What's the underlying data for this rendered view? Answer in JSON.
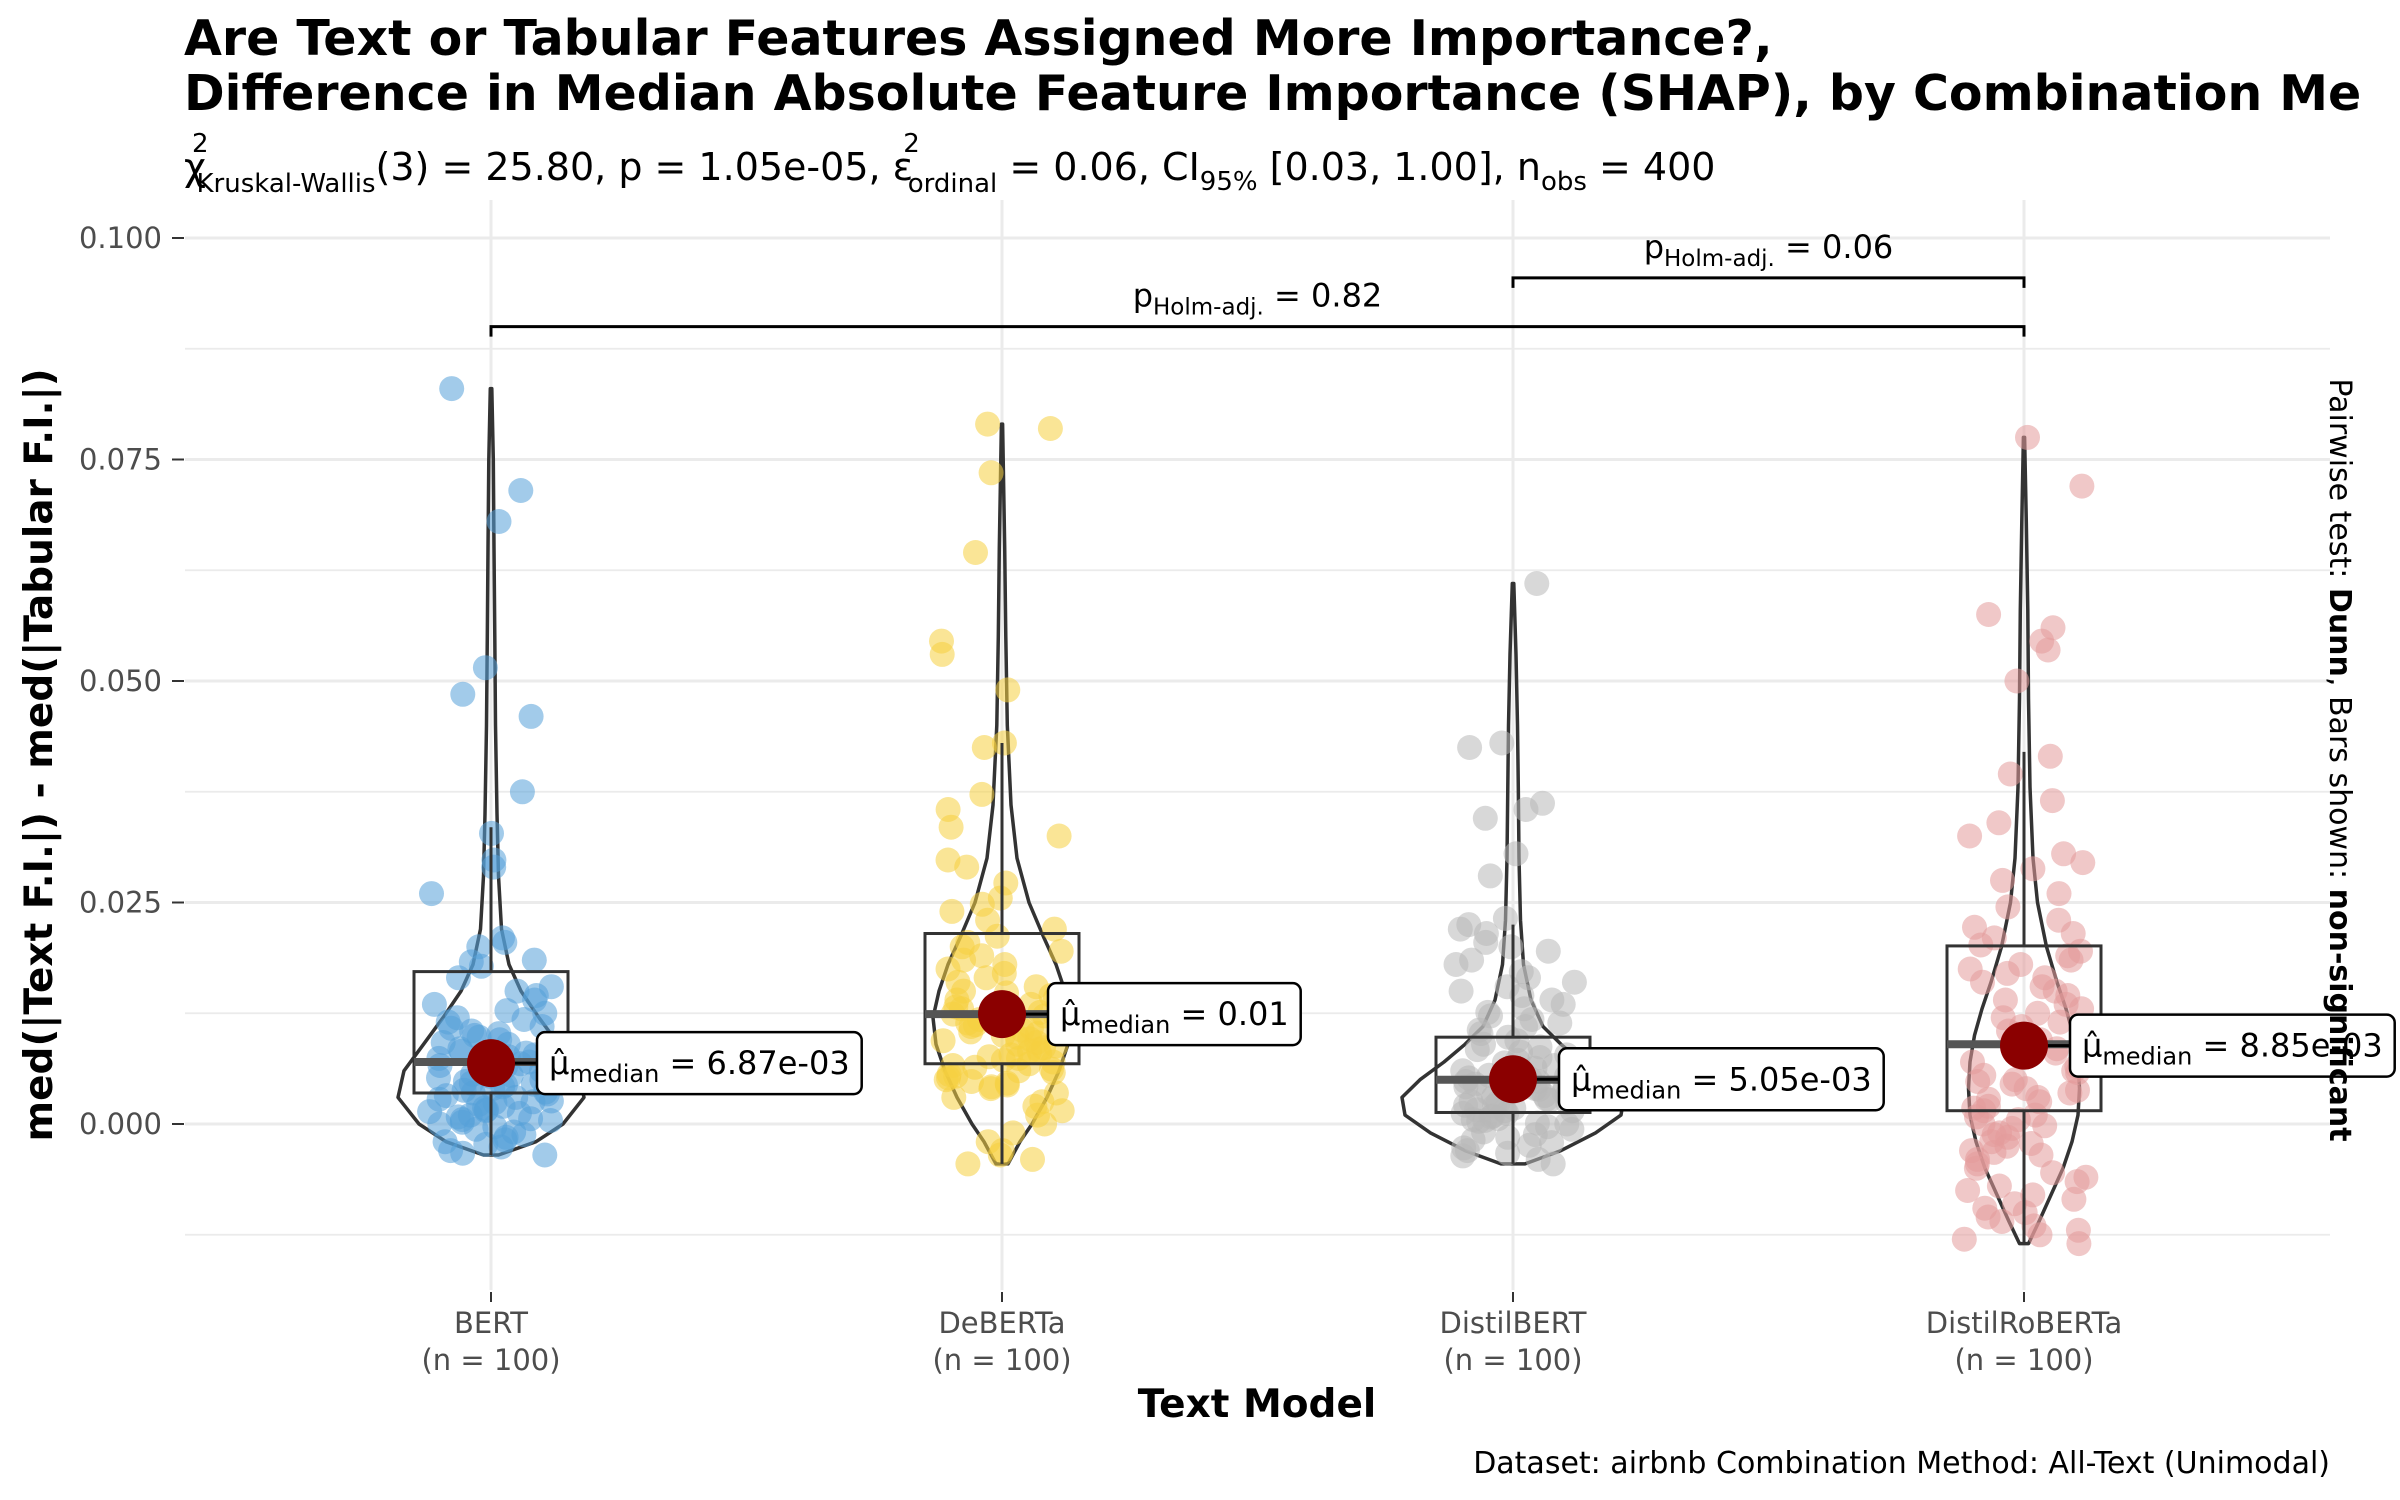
{
  "chart_data": {
    "type": "violin-box-scatter",
    "title_line1": "Are Text or Tabular Features Assigned More Importance?,",
    "title_line2": "Difference in Median Absolute Feature Importance (SHAP), by Combination Me",
    "subtitle": {
      "chi": "χ",
      "chi_sup": "2",
      "chi_sub": "Kruskal-Wallis",
      "stat": "(3) = 25.80, p = 1.05e-05, ",
      "eps": "ε",
      "eps_sup": "2",
      "eps_sub": "ordinal",
      "eps_val": " = 0.06, CI",
      "ci_sub": "95%",
      "ci_val": " [0.03, 1.00], n",
      "n_sub": "obs",
      "n_val": " = 400"
    },
    "xlabel": "Text Model",
    "ylabel": "med(|Text F.I.|) - med(|Tabular F.I.|)",
    "y_ticks": [
      "0.000",
      "0.025",
      "0.050",
      "0.075",
      "0.100"
    ],
    "y_tick_values": [
      0,
      0.025,
      0.05,
      0.075,
      0.1
    ],
    "ylim": [
      -0.0175,
      0.105
    ],
    "grid": true,
    "side_label": {
      "prefix": "Pairwise test: ",
      "test": "Dunn",
      "middle": ", Bars shown: ",
      "bars": "non-significant"
    },
    "caption": "Dataset:  airbnb Combination Method:  All-Text (Unimodal)",
    "median_label_prefix": "μ̂",
    "median_label_sub": "median",
    "brackets": [
      {
        "from": "DistilBERT",
        "to": "DistilRoBERTa",
        "y": 0.0955,
        "label_p": "p",
        "label_sub": "Holm-adj.",
        "label_val": " = 0.06"
      },
      {
        "from": "BERT",
        "to": "DistilRoBERTa",
        "y": 0.09,
        "label_p": "p",
        "label_sub": "Holm-adj.",
        "label_val": " = 0.82"
      }
    ],
    "groups": [
      {
        "name": "BERT",
        "n_label": "(n = 100)",
        "color": "#56a0d8",
        "median": 0.00687,
        "median_label": " = 6.87e-03",
        "box": {
          "q1": 0.0035,
          "median": 0.007,
          "q3": 0.0172,
          "whisker_low": -0.0035,
          "whisker_high": 0.0335
        },
        "violin_min": -0.0035,
        "violin_max": 0.083,
        "violin_profile": [
          [
            -0.0035,
            0.05
          ],
          [
            -0.002,
            0.3
          ],
          [
            0.0,
            0.48
          ],
          [
            0.003,
            0.62
          ],
          [
            0.006,
            0.58
          ],
          [
            0.009,
            0.45
          ],
          [
            0.012,
            0.32
          ],
          [
            0.015,
            0.2
          ],
          [
            0.018,
            0.12
          ],
          [
            0.022,
            0.07
          ],
          [
            0.028,
            0.05
          ],
          [
            0.035,
            0.04
          ],
          [
            0.045,
            0.03
          ],
          [
            0.055,
            0.025
          ],
          [
            0.065,
            0.02
          ],
          [
            0.075,
            0.015
          ],
          [
            0.083,
            0.005
          ]
        ],
        "points": [
          0.083,
          0.0715,
          0.068,
          0.0515,
          0.0485,
          0.046,
          0.0375,
          0.0328,
          0.0298,
          0.029,
          0.026,
          0.021,
          0.0205,
          0.02,
          0.0185,
          0.0183,
          0.0178,
          0.0165,
          0.0155,
          0.015,
          0.0145,
          0.014,
          0.0135,
          0.0128,
          0.0125,
          0.012,
          0.0118,
          0.0115,
          0.011,
          0.0108,
          0.0105,
          0.0102,
          0.01,
          0.0098,
          0.0095,
          0.0092,
          0.009,
          0.0088,
          0.0085,
          0.0082,
          0.008,
          0.0078,
          0.0076,
          0.0074,
          0.0072,
          0.007,
          0.0068,
          0.0066,
          0.0064,
          0.0062,
          0.006,
          0.0058,
          0.0056,
          0.0054,
          0.0052,
          0.005,
          0.0048,
          0.0046,
          0.0044,
          0.0042,
          0.004,
          0.0038,
          0.0036,
          0.0034,
          0.0032,
          0.003,
          0.0028,
          0.0026,
          0.0024,
          0.0022,
          0.002,
          0.0018,
          0.0016,
          0.0014,
          0.0012,
          0.001,
          0.0008,
          0.0006,
          0.0004,
          0.0002,
          0.0,
          -0.0003,
          -0.0006,
          -0.0009,
          -0.0012,
          -0.0015,
          -0.0018,
          -0.002,
          -0.0023,
          -0.0026,
          -0.003,
          -0.0033,
          -0.0035,
          0.0065,
          0.0055,
          0.0045,
          0.0035,
          0.0025,
          0.0015,
          0.0005
        ]
      },
      {
        "name": "DeBERTa",
        "n_label": "(n = 100)",
        "color": "#f5cf3f",
        "median": 0.0124,
        "median_label": " = 0.01",
        "box": {
          "q1": 0.0068,
          "median": 0.0124,
          "q3": 0.0215,
          "whisker_low": -0.0045,
          "whisker_high": 0.043
        },
        "violin_min": -0.0045,
        "violin_max": 0.079,
        "violin_profile": [
          [
            -0.0045,
            0.04
          ],
          [
            -0.002,
            0.12
          ],
          [
            0.0,
            0.2
          ],
          [
            0.003,
            0.3
          ],
          [
            0.006,
            0.38
          ],
          [
            0.009,
            0.44
          ],
          [
            0.012,
            0.46
          ],
          [
            0.015,
            0.42
          ],
          [
            0.018,
            0.36
          ],
          [
            0.021,
            0.28
          ],
          [
            0.025,
            0.18
          ],
          [
            0.03,
            0.1
          ],
          [
            0.036,
            0.06
          ],
          [
            0.045,
            0.035
          ],
          [
            0.055,
            0.025
          ],
          [
            0.065,
            0.018
          ],
          [
            0.079,
            0.004
          ]
        ],
        "points": [
          0.079,
          0.0785,
          0.0735,
          0.0645,
          0.0545,
          0.053,
          0.049,
          0.043,
          0.0425,
          0.0372,
          0.0355,
          0.0335,
          0.0325,
          0.0298,
          0.029,
          0.0272,
          0.0255,
          0.0248,
          0.024,
          0.023,
          0.022,
          0.0212,
          0.0205,
          0.02,
          0.0195,
          0.019,
          0.0185,
          0.018,
          0.0175,
          0.017,
          0.0165,
          0.016,
          0.0155,
          0.015,
          0.0148,
          0.0145,
          0.0142,
          0.014,
          0.0138,
          0.0135,
          0.0132,
          0.013,
          0.0128,
          0.0126,
          0.0124,
          0.0122,
          0.012,
          0.0118,
          0.0116,
          0.0114,
          0.0112,
          0.011,
          0.0108,
          0.0106,
          0.0104,
          0.0102,
          0.01,
          0.0098,
          0.0096,
          0.0094,
          0.0092,
          0.009,
          0.0088,
          0.0086,
          0.0084,
          0.0082,
          0.008,
          0.0078,
          0.0076,
          0.0074,
          0.0072,
          0.007,
          0.0068,
          0.0066,
          0.0064,
          0.0062,
          0.006,
          0.0058,
          0.0056,
          0.0054,
          0.0052,
          0.005,
          0.0048,
          0.0046,
          0.0044,
          0.0042,
          0.004,
          0.0035,
          0.003,
          0.0025,
          0.002,
          0.0015,
          0.001,
          0.0,
          -0.001,
          -0.002,
          -0.003,
          -0.0035,
          -0.004,
          -0.0045
        ]
      },
      {
        "name": "DistilBERT",
        "n_label": "(n = 100)",
        "color": "#b8b8b8",
        "median": 0.00505,
        "median_label": " = 5.05e-03",
        "box": {
          "q1": 0.0013,
          "median": 0.005,
          "q3": 0.0098,
          "whisker_low": -0.0045,
          "whisker_high": 0.0225
        },
        "violin_min": -0.0045,
        "violin_max": 0.061,
        "violin_profile": [
          [
            -0.0045,
            0.08
          ],
          [
            -0.003,
            0.32
          ],
          [
            -0.001,
            0.55
          ],
          [
            0.001,
            0.72
          ],
          [
            0.003,
            0.74
          ],
          [
            0.005,
            0.62
          ],
          [
            0.007,
            0.46
          ],
          [
            0.009,
            0.32
          ],
          [
            0.011,
            0.2
          ],
          [
            0.014,
            0.12
          ],
          [
            0.018,
            0.07
          ],
          [
            0.023,
            0.05
          ],
          [
            0.03,
            0.04
          ],
          [
            0.038,
            0.035
          ],
          [
            0.045,
            0.03
          ],
          [
            0.053,
            0.02
          ],
          [
            0.061,
            0.005
          ]
        ],
        "points": [
          0.061,
          0.043,
          0.0425,
          0.0362,
          0.0355,
          0.0345,
          0.0305,
          0.028,
          0.0232,
          0.0225,
          0.022,
          0.0215,
          0.0205,
          0.02,
          0.0195,
          0.0185,
          0.018,
          0.0172,
          0.0165,
          0.016,
          0.0155,
          0.015,
          0.0145,
          0.014,
          0.0135,
          0.013,
          0.0126,
          0.0122,
          0.0118,
          0.0114,
          0.011,
          0.0106,
          0.0102,
          0.0098,
          0.0094,
          0.009,
          0.0087,
          0.0084,
          0.0081,
          0.0078,
          0.0075,
          0.0072,
          0.0069,
          0.0066,
          0.0063,
          0.006,
          0.0057,
          0.0054,
          0.0051,
          0.0048,
          0.0045,
          0.0042,
          0.0039,
          0.0036,
          0.0033,
          0.003,
          0.0027,
          0.0024,
          0.0021,
          0.0018,
          0.0015,
          0.0012,
          0.0009,
          0.0006,
          0.0003,
          0.0,
          -0.0003,
          -0.0006,
          -0.0009,
          -0.0012,
          -0.0015,
          -0.0018,
          -0.0021,
          -0.0024,
          -0.0027,
          -0.003,
          -0.0033,
          -0.0036,
          -0.004,
          -0.0045,
          0.0055,
          0.0045,
          0.0035,
          0.0025,
          0.0015,
          0.0005,
          0.0052,
          0.0048,
          0.0044,
          0.004,
          0.0036,
          0.0032,
          0.0028,
          0.0024,
          0.002,
          0.0016,
          0.0012,
          0.0008,
          0.0004,
          0.0001
        ]
      },
      {
        "name": "DistilRoBERTa",
        "n_label": "(n = 100)",
        "color": "#e39a9a",
        "median": 0.00885,
        "median_label": " = 8.85e-03",
        "box": {
          "q1": 0.0015,
          "median": 0.009,
          "q3": 0.0201,
          "whisker_low": -0.0135,
          "whisker_high": 0.042
        },
        "violin_min": -0.0135,
        "violin_max": 0.0775,
        "violin_profile": [
          [
            -0.0135,
            0.03
          ],
          [
            -0.011,
            0.1
          ],
          [
            -0.008,
            0.18
          ],
          [
            -0.005,
            0.26
          ],
          [
            -0.002,
            0.32
          ],
          [
            0.001,
            0.36
          ],
          [
            0.004,
            0.37
          ],
          [
            0.007,
            0.36
          ],
          [
            0.01,
            0.33
          ],
          [
            0.013,
            0.28
          ],
          [
            0.016,
            0.22
          ],
          [
            0.02,
            0.15
          ],
          [
            0.025,
            0.09
          ],
          [
            0.03,
            0.06
          ],
          [
            0.038,
            0.04
          ],
          [
            0.048,
            0.03
          ],
          [
            0.058,
            0.025
          ],
          [
            0.068,
            0.015
          ],
          [
            0.0775,
            0.004
          ]
        ],
        "points": [
          0.0775,
          0.072,
          0.0575,
          0.056,
          0.0545,
          0.0535,
          0.05,
          0.0415,
          0.0395,
          0.0365,
          0.034,
          0.0325,
          0.0305,
          0.0295,
          0.0288,
          0.0275,
          0.026,
          0.0245,
          0.023,
          0.0222,
          0.0215,
          0.021,
          0.0202,
          0.0195,
          0.019,
          0.0185,
          0.018,
          0.0175,
          0.017,
          0.0165,
          0.016,
          0.0155,
          0.015,
          0.0145,
          0.014,
          0.0135,
          0.013,
          0.0125,
          0.012,
          0.0115,
          0.011,
          0.0105,
          0.01,
          0.0095,
          0.009,
          0.0085,
          0.008,
          0.0075,
          0.007,
          0.0065,
          0.006,
          0.0055,
          0.005,
          0.0045,
          0.004,
          0.0035,
          0.003,
          0.0025,
          0.002,
          0.0015,
          0.001,
          0.0005,
          0.0,
          -0.0005,
          -0.001,
          -0.0015,
          -0.002,
          -0.0025,
          -0.003,
          -0.0035,
          -0.004,
          -0.0045,
          -0.005,
          -0.0055,
          -0.006,
          -0.0065,
          -0.007,
          -0.0075,
          -0.008,
          -0.0085,
          -0.009,
          -0.0095,
          -0.01,
          -0.0105,
          -0.011,
          -0.0115,
          -0.012,
          -0.0125,
          -0.013,
          -0.0135,
          0.0058,
          0.0048,
          0.0038,
          0.0028,
          0.0018,
          0.0008,
          -0.0002,
          -0.0012,
          -0.0022,
          -0.0032
        ]
      }
    ]
  }
}
